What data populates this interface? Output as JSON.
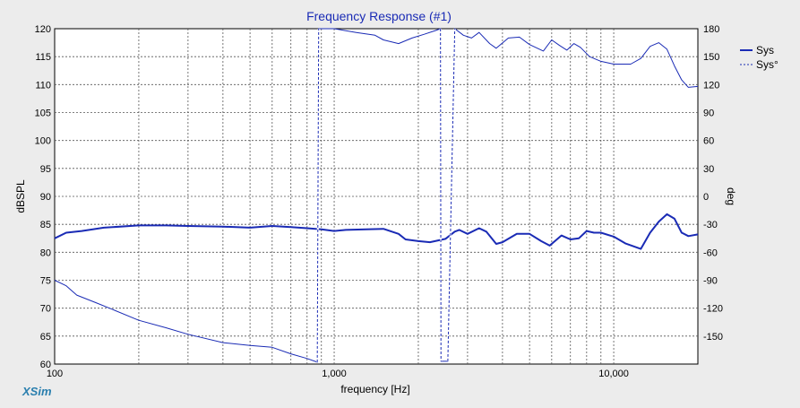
{
  "chart_data": {
    "type": "line",
    "title": "Frequency Response (#1)",
    "xlabel": "frequency [Hz]",
    "ylabel_left": "dBSPL",
    "ylabel_right": "deg",
    "x_scale": "log",
    "xlim": [
      100,
      20000
    ],
    "ylim_left": [
      60,
      120
    ],
    "ylim_right": [
      -180,
      180
    ],
    "x_tick_labels": [
      {
        "x": 100,
        "label": "100"
      },
      {
        "x": 1000,
        "label": "1,000"
      },
      {
        "x": 10000,
        "label": "10,000"
      }
    ],
    "y_left_ticks": [
      60,
      65,
      70,
      75,
      80,
      85,
      90,
      95,
      100,
      105,
      110,
      115,
      120
    ],
    "y_right_ticks": [
      -150,
      -120,
      -90,
      -60,
      -30,
      0,
      30,
      60,
      90,
      120,
      150,
      180
    ],
    "grid": true,
    "legend_position": "top-right",
    "colors": {
      "series": "#1a2bb5",
      "title": "#1a2bb5",
      "brand": "#2a7fae",
      "grid": "#555555"
    },
    "series": [
      {
        "name": "Sys",
        "axis": "left",
        "style": "solid",
        "points": [
          [
            100,
            82.5
          ],
          [
            110,
            83.5
          ],
          [
            125,
            83.8
          ],
          [
            150,
            84.4
          ],
          [
            200,
            84.8
          ],
          [
            250,
            84.8
          ],
          [
            300,
            84.7
          ],
          [
            400,
            84.6
          ],
          [
            500,
            84.4
          ],
          [
            600,
            84.7
          ],
          [
            700,
            84.5
          ],
          [
            800,
            84.3
          ],
          [
            900,
            84.1
          ],
          [
            1000,
            83.8
          ],
          [
            1100,
            84.0
          ],
          [
            1300,
            84.1
          ],
          [
            1500,
            84.2
          ],
          [
            1700,
            83.3
          ],
          [
            1800,
            82.3
          ],
          [
            2000,
            82.0
          ],
          [
            2200,
            81.8
          ],
          [
            2500,
            82.4
          ],
          [
            2700,
            83.7
          ],
          [
            2800,
            84.0
          ],
          [
            3000,
            83.3
          ],
          [
            3300,
            84.3
          ],
          [
            3500,
            83.7
          ],
          [
            3800,
            81.5
          ],
          [
            4000,
            81.8
          ],
          [
            4500,
            83.3
          ],
          [
            5000,
            83.3
          ],
          [
            5500,
            82.0
          ],
          [
            5900,
            81.2
          ],
          [
            6500,
            83.0
          ],
          [
            7000,
            82.3
          ],
          [
            7500,
            82.5
          ],
          [
            8000,
            83.8
          ],
          [
            8500,
            83.5
          ],
          [
            9000,
            83.5
          ],
          [
            10000,
            82.8
          ],
          [
            11000,
            81.6
          ],
          [
            12500,
            80.6
          ],
          [
            13500,
            83.5
          ],
          [
            14500,
            85.5
          ],
          [
            15500,
            86.8
          ],
          [
            16500,
            86.0
          ],
          [
            17500,
            83.5
          ],
          [
            18500,
            82.9
          ],
          [
            20000,
            83.2
          ]
        ]
      },
      {
        "name": "Sys°",
        "axis": "right",
        "style": "dotted",
        "points": [
          [
            100,
            -90
          ],
          [
            110,
            -96
          ],
          [
            120,
            -106
          ],
          [
            140,
            -114
          ],
          [
            160,
            -121
          ],
          [
            200,
            -133
          ],
          [
            250,
            -141
          ],
          [
            300,
            -148
          ],
          [
            400,
            -157
          ],
          [
            500,
            -160
          ],
          [
            600,
            -162
          ],
          [
            700,
            -169
          ],
          [
            800,
            -174
          ],
          [
            870,
            -178
          ],
          [
            880,
            180
          ],
          [
            1000,
            180
          ],
          [
            1200,
            176
          ],
          [
            1400,
            173
          ],
          [
            1500,
            168
          ],
          [
            1700,
            164
          ],
          [
            1900,
            170
          ],
          [
            2100,
            174
          ],
          [
            2300,
            178
          ],
          [
            2400,
            180
          ],
          [
            2410,
            -177
          ],
          [
            2550,
            -177
          ],
          [
            2700,
            180
          ],
          [
            2900,
            173
          ],
          [
            3100,
            170
          ],
          [
            3300,
            176
          ],
          [
            3600,
            164
          ],
          [
            3800,
            159
          ],
          [
            4200,
            170
          ],
          [
            4600,
            171
          ],
          [
            5000,
            163
          ],
          [
            5600,
            156
          ],
          [
            6000,
            168
          ],
          [
            6400,
            162
          ],
          [
            6800,
            157
          ],
          [
            7200,
            164
          ],
          [
            7600,
            160
          ],
          [
            8200,
            150
          ],
          [
            9000,
            145
          ],
          [
            10000,
            142
          ],
          [
            11500,
            142
          ],
          [
            12500,
            148
          ],
          [
            13500,
            161
          ],
          [
            14500,
            165
          ],
          [
            15500,
            158
          ],
          [
            16500,
            140
          ],
          [
            17500,
            125
          ],
          [
            18500,
            117
          ],
          [
            20000,
            118
          ]
        ]
      }
    ]
  },
  "brand": "XSim"
}
